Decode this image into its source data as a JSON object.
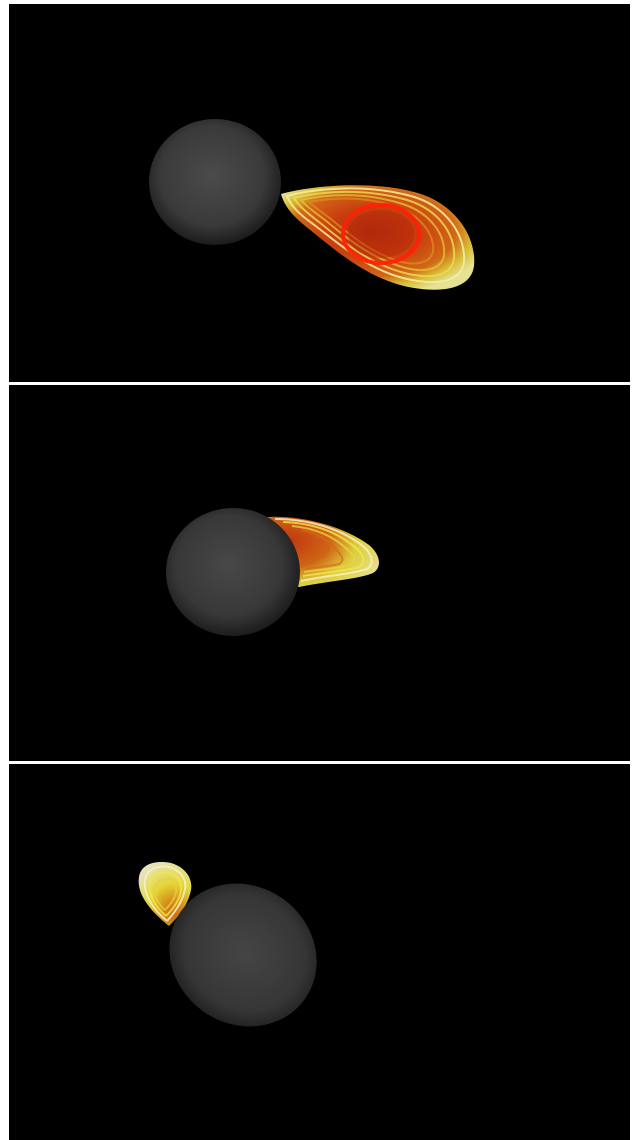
{
  "figure": {
    "panels": [
      {
        "id": "panel-1",
        "view": "front",
        "body": "gray-sphere",
        "plume": "red-yellow-contour-lobe",
        "plume_colors": [
          "#ff2a10",
          "#d84a12",
          "#e8e23a",
          "#f4f0b8"
        ]
      },
      {
        "id": "panel-2",
        "view": "oblique",
        "body": "gray-sphere",
        "plume": "red-yellow-contour-lobe",
        "plume_colors": [
          "#d23f12",
          "#f0dc2e",
          "#f7f1c5"
        ]
      },
      {
        "id": "panel-3",
        "view": "edge-on",
        "body": "gray-sphere",
        "plume": "red-yellow-contour-lobe",
        "plume_colors": [
          "#e0a020",
          "#f2e23a",
          "#f7f2cd"
        ]
      }
    ],
    "colors": {
      "background": "#000000",
      "separator": "#ffffff",
      "sphere_center": "#4a4a4a",
      "sphere_edge": "#1e1e1e"
    }
  }
}
